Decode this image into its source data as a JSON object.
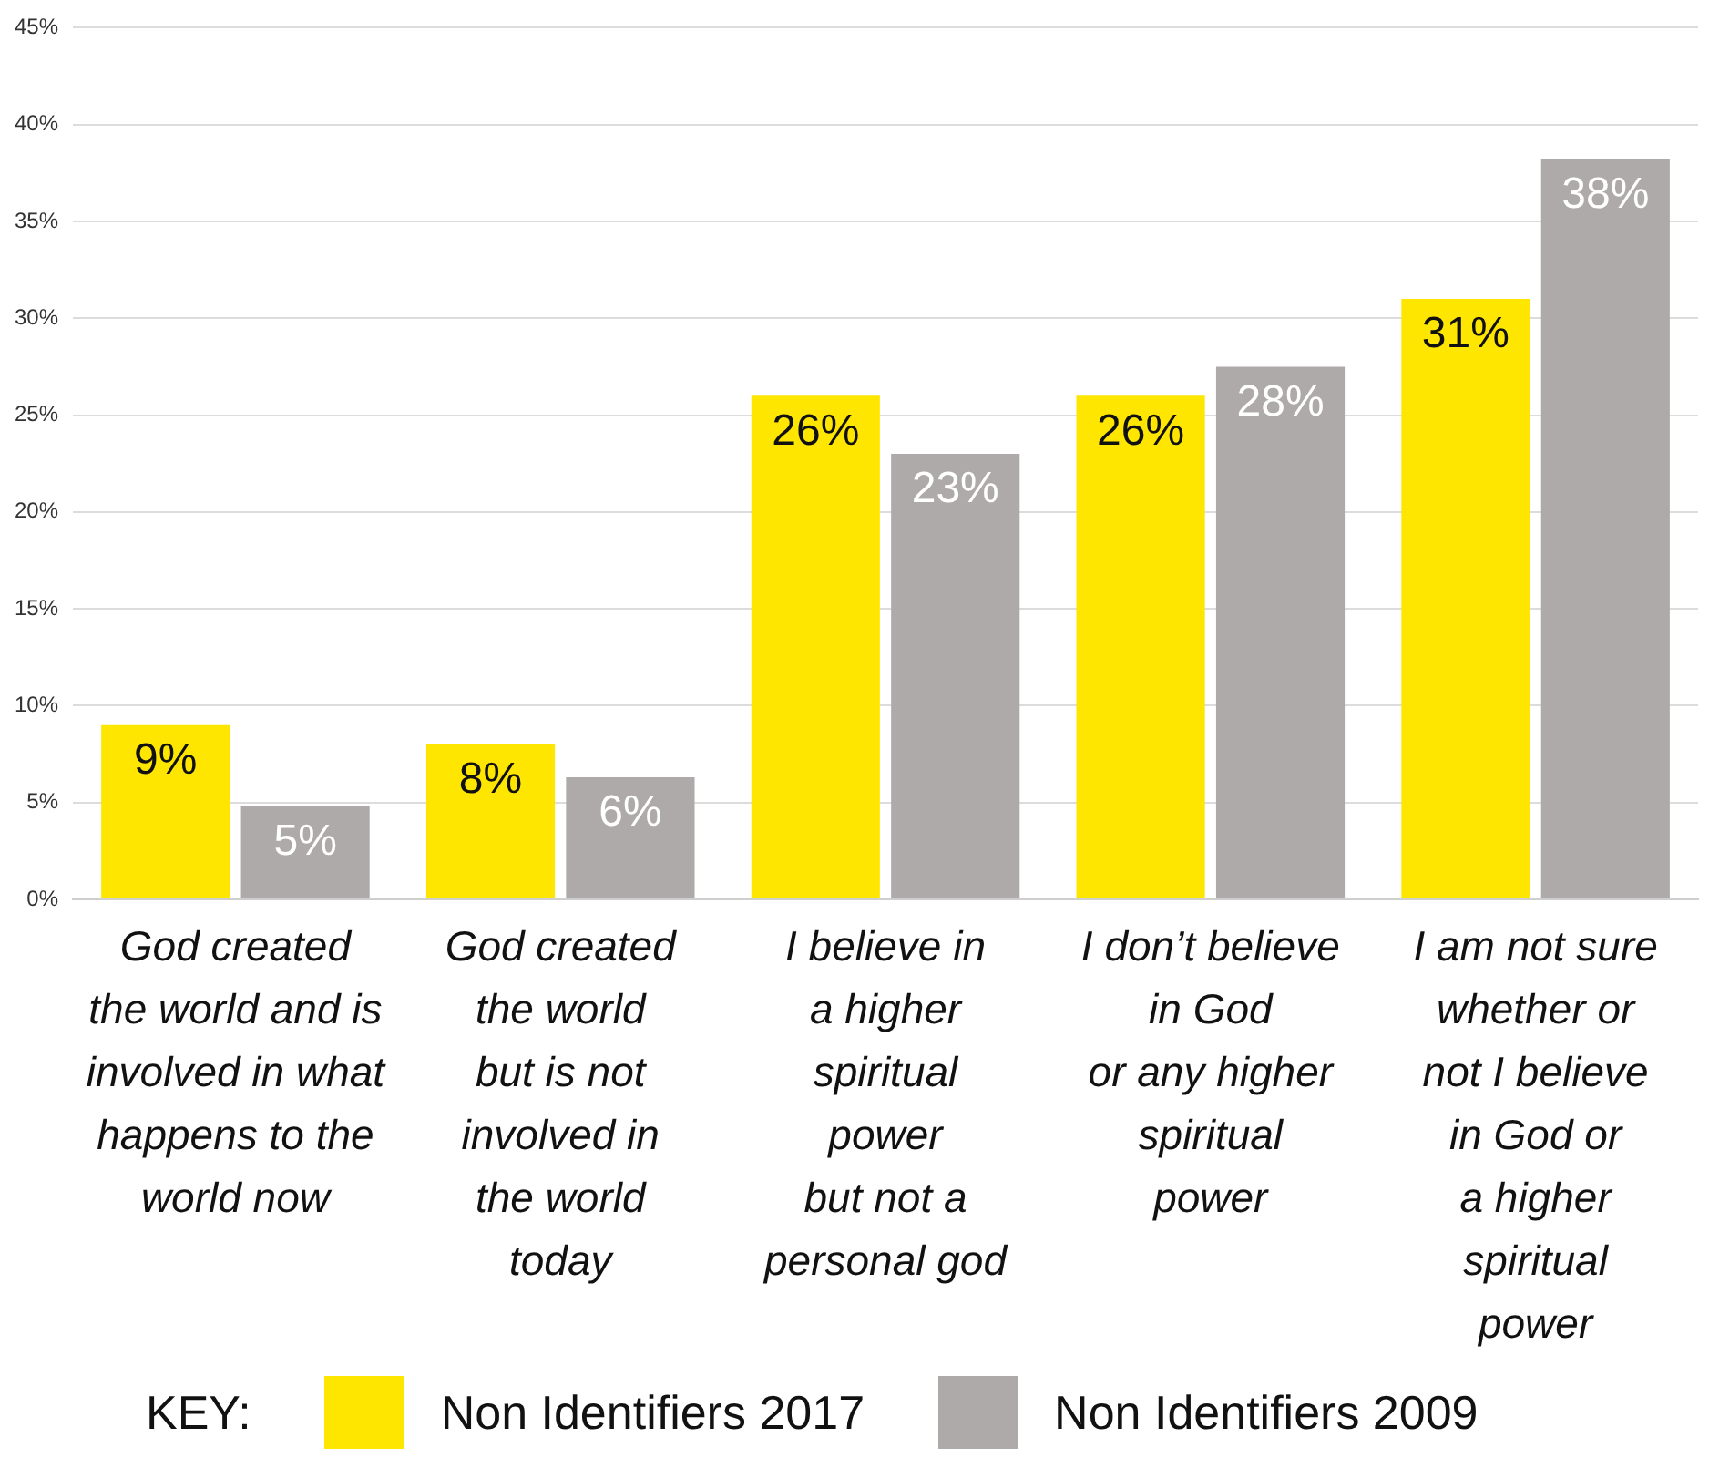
{
  "chart_data": {
    "type": "bar",
    "categories": [
      "God created\nthe world and is\ninvolved in what\nhappens to the\nworld now",
      "God created\nthe world\nbut is not\ninvolved in\nthe world\ntoday",
      "I believe in\na higher\nspiritual\npower\nbut not a\npersonal god",
      "I don’t believe\nin God\nor any higher\nspiritual\npower",
      "I am not sure\nwhether or\nnot I believe\nin God or\na higher\nspiritual\npower"
    ],
    "series": [
      {
        "name": "Non Identifiers 2017",
        "color": "#ffe600",
        "values": [
          9,
          8,
          26,
          26,
          31
        ],
        "value_labels": [
          "9%",
          "8%",
          "26%",
          "26%",
          "31%"
        ]
      },
      {
        "name": "Non Identifiers 2009",
        "color": "#aeaaaa",
        "values": [
          4.8,
          6.3,
          23,
          27.5,
          38.2
        ],
        "value_labels": [
          "5%",
          "6%",
          "23%",
          "28%",
          "38%"
        ]
      }
    ],
    "ylim": [
      0,
      45
    ],
    "yticks": [
      {
        "value": 0,
        "label": "0%"
      },
      {
        "value": 5,
        "label": "5%"
      },
      {
        "value": 10,
        "label": "10%"
      },
      {
        "value": 15,
        "label": "15%"
      },
      {
        "value": 20,
        "label": "20%"
      },
      {
        "value": 25,
        "label": "25%"
      },
      {
        "value": 30,
        "label": "30%"
      },
      {
        "value": 35,
        "label": "35%"
      },
      {
        "value": 40,
        "label": "40%"
      },
      {
        "value": 45,
        "label": "45%"
      }
    ],
    "grid": "y",
    "legend": "bottom",
    "legend_title": "KEY:"
  }
}
